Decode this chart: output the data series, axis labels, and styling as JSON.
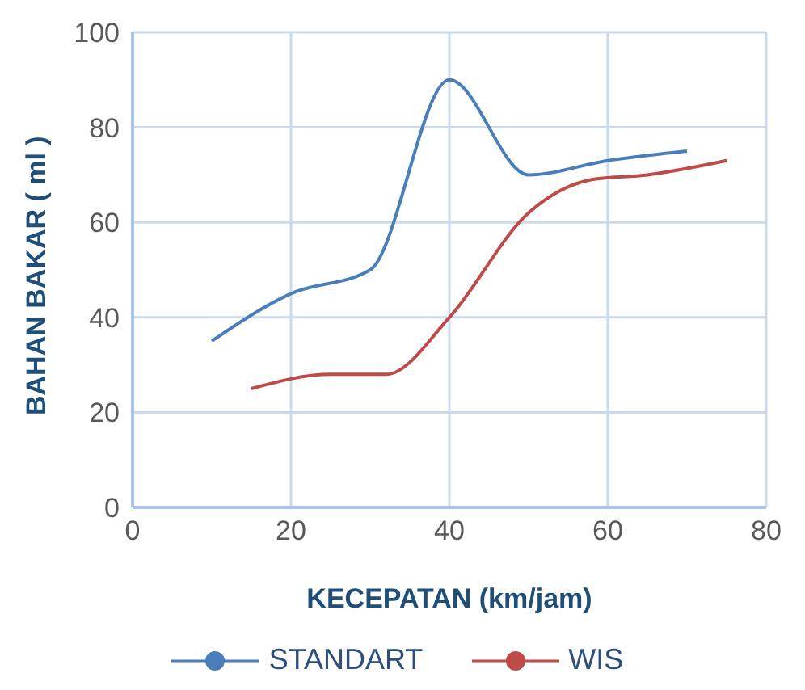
{
  "chart_data": {
    "type": "line",
    "xlabel": "KECEPATAN (km/jam)",
    "ylabel": "BAHAN BAKAR ( ml )",
    "xlim": [
      0,
      80
    ],
    "xticks": [
      0,
      20,
      40,
      60,
      80
    ],
    "ylim": [
      0,
      100
    ],
    "yticks": [
      0,
      20,
      40,
      60,
      80,
      100
    ],
    "grid": true,
    "legend": "bottom",
    "marker": "none",
    "line_style": "solid",
    "series": [
      {
        "name": "STANDART",
        "color": "#4a7ebb",
        "x": [
          10,
          20,
          30,
          40,
          50,
          60,
          70
        ],
        "values": [
          35,
          45,
          50,
          90,
          70,
          73,
          75
        ]
      },
      {
        "name": "WIS",
        "color": "#be4b48",
        "x": [
          15,
          25,
          32,
          40,
          50,
          58,
          65,
          75
        ],
        "values": [
          25,
          28,
          28,
          40,
          62,
          69,
          70,
          73
        ]
      }
    ]
  }
}
